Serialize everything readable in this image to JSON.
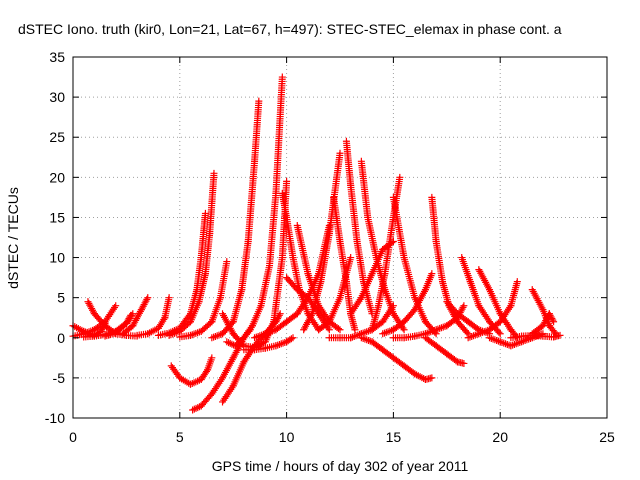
{
  "chart_data": {
    "type": "scatter",
    "title": "dSTEC Iono. truth (kir0, Lon=21, Lat=67, h=497): STEC-STEC_elemax in phase cont. a",
    "xlabel": "GPS time / hours of day 302 of year 2011",
    "ylabel": "dSTEC  / TECUs",
    "xlim": [
      0,
      25
    ],
    "ylim": [
      -10,
      35
    ],
    "xticks": [
      0,
      5,
      10,
      15,
      20,
      25
    ],
    "yticks": [
      -10,
      -5,
      0,
      5,
      10,
      15,
      20,
      25,
      30,
      35
    ],
    "xtick_labels": [
      "0",
      "5",
      "10",
      "15",
      "20",
      "25"
    ],
    "ytick_labels": [
      "-10",
      "-5",
      "0",
      "5",
      "10",
      "15",
      "20",
      "25",
      "30",
      "35"
    ],
    "grid": true,
    "marker": "plus",
    "color": "#ff0000",
    "series": [
      {
        "x": [
          0.0,
          0.5,
          1.0,
          1.3,
          1.5
        ],
        "y": [
          1.5,
          0.8,
          0.3,
          0.8,
          1.8
        ]
      },
      {
        "x": [
          0.0,
          0.5,
          1.0,
          1.5,
          2.0
        ],
        "y": [
          0.2,
          0.5,
          1.0,
          2.0,
          4.0
        ]
      },
      {
        "x": [
          0.7,
          1.0,
          1.5,
          2.0,
          2.5,
          3.0
        ],
        "y": [
          4.5,
          3.0,
          1.5,
          0.5,
          0.3,
          0.2
        ]
      },
      {
        "x": [
          0.5,
          1.0,
          1.5,
          2.0,
          2.5,
          2.8
        ],
        "y": [
          0.1,
          0.2,
          0.4,
          0.8,
          1.8,
          3.0
        ]
      },
      {
        "x": [
          1.5,
          2.0,
          2.5,
          2.7
        ],
        "y": [
          0.2,
          0.6,
          1.8,
          2.8
        ]
      },
      {
        "x": [
          2.3,
          2.8,
          3.2,
          3.5
        ],
        "y": [
          0.4,
          1.5,
          3.5,
          5.0
        ]
      },
      {
        "x": [
          3.0,
          3.5,
          4.0,
          4.3,
          4.5
        ],
        "y": [
          0.3,
          0.5,
          1.2,
          2.5,
          5.0
        ]
      },
      {
        "x": [
          4.6,
          5.0,
          5.5,
          6.0,
          6.3,
          6.5
        ],
        "y": [
          -3.5,
          -5.0,
          -5.8,
          -5.2,
          -4.0,
          -2.5
        ]
      },
      {
        "x": [
          4.0,
          4.5,
          5.0,
          5.5,
          5.8,
          6.0,
          6.2
        ],
        "y": [
          0.3,
          0.6,
          1.2,
          3.0,
          6.0,
          10.0,
          15.5
        ]
      },
      {
        "x": [
          4.5,
          5.0,
          5.5,
          5.9,
          6.2,
          6.4,
          6.6
        ],
        "y": [
          0.3,
          0.8,
          2.0,
          4.5,
          8.0,
          13.0,
          20.5
        ]
      },
      {
        "x": [
          5.0,
          5.5,
          6.0,
          6.5,
          6.9,
          7.2
        ],
        "y": [
          0.1,
          0.3,
          0.8,
          2.0,
          5.0,
          9.5
        ]
      },
      {
        "x": [
          5.6,
          6.0,
          6.5,
          7.0,
          7.5,
          8.0,
          8.3
        ],
        "y": [
          -9.0,
          -8.5,
          -7.0,
          -5.0,
          -2.5,
          0.0,
          1.0
        ]
      },
      {
        "x": [
          7.0,
          7.5,
          8.0,
          8.5,
          9.0,
          9.5,
          9.7
        ],
        "y": [
          -8.0,
          -6.0,
          -3.0,
          -1.0,
          0.5,
          2.0,
          3.0
        ]
      },
      {
        "x": [
          6.5,
          7.0,
          7.5,
          7.9,
          8.2,
          8.5,
          8.7
        ],
        "y": [
          0.0,
          0.5,
          2.0,
          6.0,
          12.0,
          22.0,
          29.5
        ]
      },
      {
        "x": [
          7.2,
          7.6,
          8.0,
          8.4,
          8.8,
          9.2,
          9.5,
          9.8
        ],
        "y": [
          -0.5,
          -1.0,
          0.0,
          1.5,
          4.0,
          9.0,
          18.0,
          32.5
        ]
      },
      {
        "x": [
          7.0,
          7.5,
          8.0,
          8.5,
          9.0,
          9.4,
          9.8,
          10.0
        ],
        "y": [
          3.0,
          0.5,
          -1.0,
          -1.2,
          -0.5,
          2.0,
          10.0,
          19.5
        ]
      },
      {
        "x": [
          8.0,
          8.5,
          9.0,
          9.5,
          10.0,
          10.3
        ],
        "y": [
          -1.5,
          -1.5,
          -1.3,
          -1.0,
          -0.5,
          0.0
        ]
      },
      {
        "x": [
          9.8,
          10.0,
          10.3,
          10.6,
          11.0,
          11.5
        ],
        "y": [
          18.0,
          15.0,
          10.0,
          6.0,
          3.0,
          1.0
        ]
      },
      {
        "x": [
          10.0,
          10.5,
          11.0,
          11.5,
          12.0
        ],
        "y": [
          7.5,
          6.0,
          5.0,
          3.0,
          1.0
        ]
      },
      {
        "x": [
          10.5,
          11.0,
          11.5,
          12.0,
          12.5
        ],
        "y": [
          14.0,
          8.0,
          4.0,
          2.0,
          1.0
        ]
      },
      {
        "x": [
          8.5,
          9.0,
          9.5,
          10.0,
          10.5,
          11.0,
          11.5,
          12.0
        ],
        "y": [
          0.0,
          0.5,
          1.0,
          2.0,
          3.0,
          5.0,
          8.0,
          14.0
        ]
      },
      {
        "x": [
          10.8,
          11.2,
          11.6,
          12.0,
          12.5
        ],
        "y": [
          1.0,
          3.0,
          7.0,
          13.0,
          23.0
        ]
      },
      {
        "x": [
          11.5,
          12.0,
          12.5,
          13.0
        ],
        "y": [
          1.0,
          2.0,
          5.0,
          10.0
        ]
      },
      {
        "x": [
          12.2,
          12.5,
          12.8,
          13.0,
          13.2
        ],
        "y": [
          17.5,
          12.0,
          7.0,
          3.0,
          1.0
        ]
      },
      {
        "x": [
          12.8,
          13.0,
          13.3,
          13.6,
          14.0
        ],
        "y": [
          24.5,
          19.0,
          12.0,
          7.0,
          3.0
        ]
      },
      {
        "x": [
          13.5,
          13.8,
          14.2,
          14.6,
          15.0,
          15.5
        ],
        "y": [
          22.0,
          15.0,
          10.0,
          6.0,
          3.0,
          1.0
        ]
      },
      {
        "x": [
          14.0,
          14.3,
          14.6,
          15.0,
          15.3
        ],
        "y": [
          1.0,
          4.0,
          8.0,
          15.0,
          20.0
        ]
      },
      {
        "x": [
          15.0,
          15.5,
          16.0,
          16.5,
          17.0
        ],
        "y": [
          17.5,
          10.0,
          5.0,
          2.0,
          0.5
        ]
      },
      {
        "x": [
          13.0,
          13.5,
          14.0,
          14.5,
          15.0
        ],
        "y": [
          3.0,
          5.0,
          8.0,
          11.0,
          12.0
        ]
      },
      {
        "x": [
          12.0,
          12.5,
          13.0,
          13.5,
          14.0,
          14.5,
          15.0
        ],
        "y": [
          0.0,
          0.0,
          0.0,
          0.5,
          1.0,
          2.0,
          4.0
        ]
      },
      {
        "x": [
          13.5,
          14.0,
          14.5,
          15.0,
          15.5,
          16.0,
          16.5,
          16.8
        ],
        "y": [
          0.0,
          -0.5,
          -1.5,
          -2.5,
          -3.5,
          -4.5,
          -5.2,
          -5.0
        ]
      },
      {
        "x": [
          14.5,
          15.0,
          15.5,
          16.0,
          16.5,
          16.8
        ],
        "y": [
          0.5,
          1.0,
          2.0,
          3.5,
          6.0,
          8.0
        ]
      },
      {
        "x": [
          15.0,
          15.5,
          16.0,
          16.5,
          17.0,
          17.5,
          18.0,
          18.3
        ],
        "y": [
          0.0,
          0.0,
          0.2,
          0.5,
          1.0,
          1.5,
          2.5,
          4.0
        ]
      },
      {
        "x": [
          16.5,
          17.0,
          17.5,
          18.0,
          18.3
        ],
        "y": [
          0.0,
          -1.0,
          -2.0,
          -3.0,
          -3.2
        ]
      },
      {
        "x": [
          16.8,
          17.0,
          17.3,
          17.6,
          18.0,
          18.5
        ],
        "y": [
          17.5,
          12.0,
          7.0,
          4.0,
          2.0,
          0.5
        ]
      },
      {
        "x": [
          17.5,
          18.0,
          18.5,
          19.0,
          19.5
        ],
        "y": [
          4.5,
          3.0,
          2.0,
          1.0,
          0.5
        ]
      },
      {
        "x": [
          18.2,
          18.6,
          19.0,
          19.5,
          20.0
        ],
        "y": [
          10.0,
          7.0,
          4.0,
          2.0,
          0.5
        ]
      },
      {
        "x": [
          18.5,
          19.0,
          19.5,
          20.0,
          20.5,
          20.8
        ],
        "y": [
          0.0,
          0.5,
          1.0,
          2.0,
          4.0,
          7.0
        ]
      },
      {
        "x": [
          19.0,
          19.5,
          20.0,
          20.5,
          20.8
        ],
        "y": [
          8.5,
          6.0,
          3.0,
          1.0,
          0.0
        ]
      },
      {
        "x": [
          19.5,
          20.0,
          20.5,
          21.0,
          21.5,
          22.0
        ],
        "y": [
          0.0,
          -0.5,
          -1.0,
          -0.5,
          0.0,
          0.5
        ]
      },
      {
        "x": [
          20.5,
          21.0,
          21.5,
          22.0,
          22.5,
          22.8
        ],
        "y": [
          0.0,
          0.2,
          0.3,
          0.2,
          0.1,
          0.3
        ]
      },
      {
        "x": [
          21.5,
          22.0,
          22.3,
          22.6
        ],
        "y": [
          6.0,
          3.5,
          1.5,
          0.5
        ]
      },
      {
        "x": [
          21.5,
          22.0,
          22.3,
          22.5
        ],
        "y": [
          0.5,
          1.5,
          3.0,
          2.0
        ]
      }
    ]
  }
}
